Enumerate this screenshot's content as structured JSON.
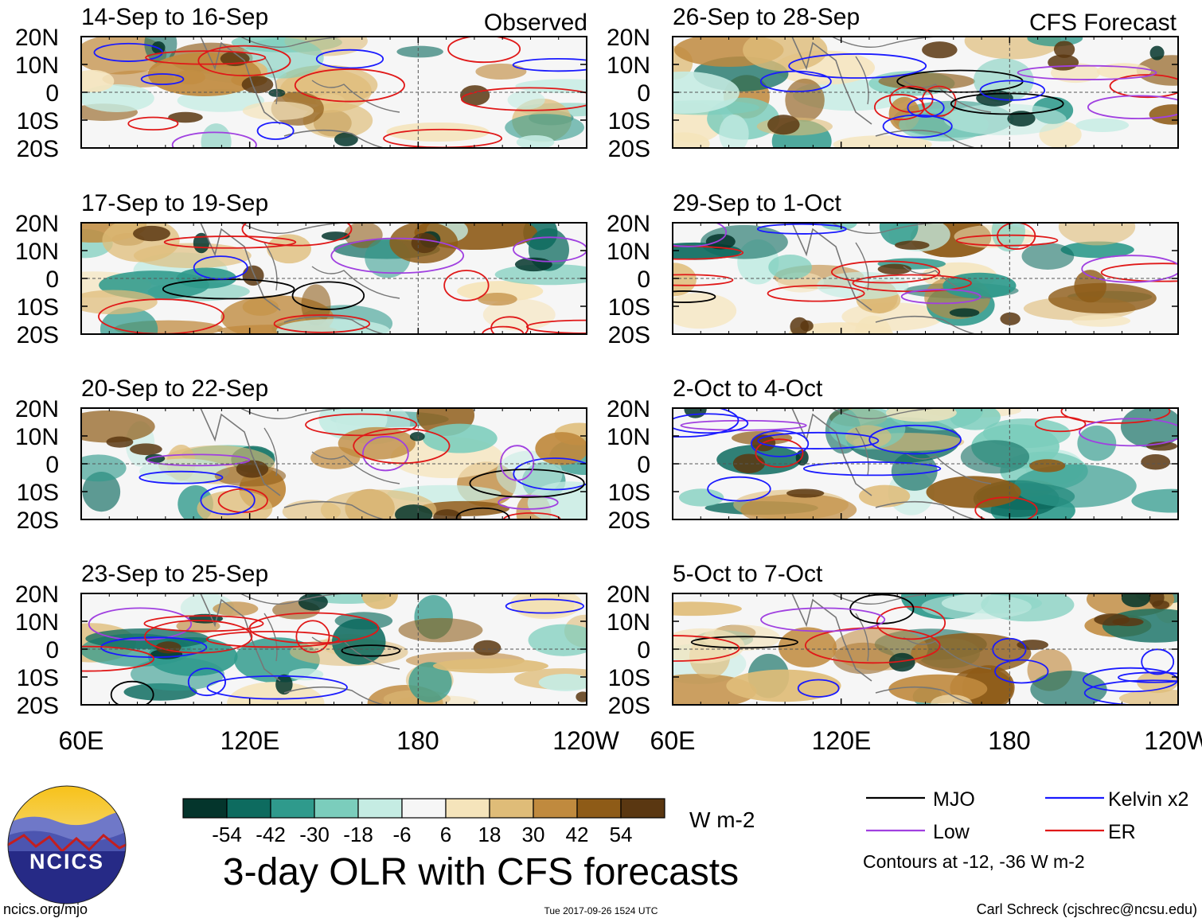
{
  "title": "3-day OLR with CFS forecasts",
  "column_labels": {
    "left": "Observed",
    "right": "CFS Forecast"
  },
  "footer": {
    "site": "ncics.org/mjo",
    "timestamp": "Tue 2017-09-26 1524 UTC",
    "author": "Carl Schreck (cjschrec@ncsu.edu)"
  },
  "logo": {
    "text": "NCICS",
    "icon": "ncics-logo"
  },
  "colorbar": {
    "units": "W m-2",
    "ticks": [
      "-54",
      "-42",
      "-30",
      "-18",
      "-6",
      "6",
      "18",
      "30",
      "42",
      "54"
    ],
    "colors": [
      "#04352c",
      "#0d6b5f",
      "#2f9a8c",
      "#7bcdbc",
      "#c5ece3",
      "#f6f6f6",
      "#f5e4bb",
      "#dfbc78",
      "#c08a3e",
      "#8e5b17",
      "#5a3711"
    ]
  },
  "legend": {
    "items": [
      {
        "label": "MJO",
        "color": "#000000"
      },
      {
        "label": "Kelvin x2",
        "color": "#1a1aff"
      },
      {
        "label": "Low",
        "color": "#a040e0"
      },
      {
        "label": "ER",
        "color": "#e01818"
      }
    ],
    "note": "Contours at -12, -36 W m-2"
  },
  "chart_data": {
    "type": "heatmap",
    "variable": "OLR anomaly",
    "units": "W m-2",
    "contour_levels": [
      -12,
      -36
    ],
    "x_ticks": [
      "60E",
      "120E",
      "180",
      "120W"
    ],
    "x_range": [
      60,
      240
    ],
    "y_ticks": [
      "20N",
      "10N",
      "0",
      "10S",
      "20S"
    ],
    "y_range": [
      -20,
      20
    ],
    "panels": [
      {
        "title": "14-Sep to 16-Sep",
        "column": "Observed"
      },
      {
        "title": "17-Sep to 19-Sep",
        "column": "Observed"
      },
      {
        "title": "20-Sep to 22-Sep",
        "column": "Observed"
      },
      {
        "title": "23-Sep to 25-Sep",
        "column": "Observed"
      },
      {
        "title": "26-Sep to 28-Sep",
        "column": "CFS Forecast"
      },
      {
        "title": "29-Sep to 1-Oct",
        "column": "CFS Forecast"
      },
      {
        "title": "2-Oct to 4-Oct",
        "column": "CFS Forecast"
      },
      {
        "title": "5-Oct to 7-Oct",
        "column": "CFS Forecast"
      }
    ]
  }
}
